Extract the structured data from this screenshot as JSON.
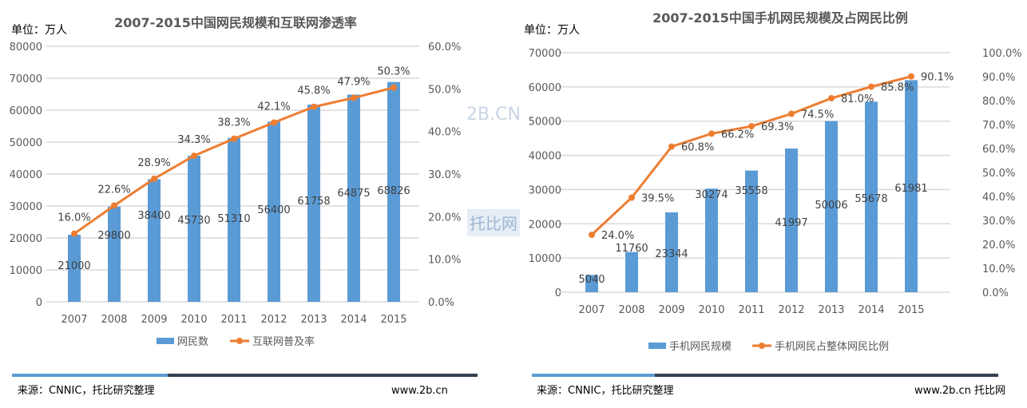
{
  "watermark": {
    "top": "2B.CN",
    "bottom": "托比网"
  },
  "colors": {
    "bar": "#5b9bd5",
    "line": "#ed7d31",
    "grid": "#d9d9d9",
    "footer_blue": "#5b9bd5",
    "footer_dark": "#333f50"
  },
  "chart_data": [
    {
      "type": "bar+line",
      "title": "2007-2015中国网民规模和互联网渗透率",
      "unit_label": "单位：万人",
      "categories": [
        "2007",
        "2008",
        "2009",
        "2010",
        "2011",
        "2012",
        "2013",
        "2014",
        "2015"
      ],
      "ylim": [
        0,
        80000
      ],
      "yticks": [
        "0",
        "10000",
        "20000",
        "30000",
        "40000",
        "50000",
        "60000",
        "70000",
        "80000"
      ],
      "y2lim": [
        0,
        60
      ],
      "y2ticks": [
        "0.0%",
        "10.0%",
        "20.0%",
        "30.0%",
        "40.0%",
        "50.0%",
        "60.0%"
      ],
      "grid": true,
      "legend_position": "bottom",
      "series": [
        {
          "name": "网民数",
          "type": "bar",
          "axis": "left",
          "values": [
            21000,
            29800,
            38400,
            45730,
            51310,
            56400,
            61758,
            64875,
            68826
          ],
          "labels": [
            "21000",
            "29800",
            "38400",
            "45730",
            "51310",
            "56400",
            "61758",
            "64875",
            "68826"
          ]
        },
        {
          "name": "互联网普及率",
          "type": "line",
          "axis": "right",
          "values": [
            16.0,
            22.6,
            28.9,
            34.3,
            38.3,
            42.1,
            45.8,
            47.9,
            50.3
          ],
          "labels": [
            "16.0%",
            "22.6%",
            "28.9%",
            "34.3%",
            "38.3%",
            "42.1%",
            "45.8%",
            "47.9%",
            "50.3%"
          ]
        }
      ],
      "footer": {
        "source": "来源：CNNIC，托比研究整理",
        "site": "www.2b.cn"
      }
    },
    {
      "type": "bar+line",
      "title": "2007-2015中国手机网民规模及占网民比例",
      "unit_label": "单位：万人",
      "categories": [
        "2007",
        "2008",
        "2009",
        "2010",
        "2011",
        "2012",
        "2013",
        "2014",
        "2015"
      ],
      "ylim": [
        0,
        70000
      ],
      "yticks": [
        "0",
        "10000",
        "20000",
        "30000",
        "40000",
        "50000",
        "60000",
        "70000"
      ],
      "y2lim": [
        0,
        100
      ],
      "y2ticks": [
        "0.0%",
        "10.0%",
        "20.0%",
        "30.0%",
        "40.0%",
        "50.0%",
        "60.0%",
        "70.0%",
        "80.0%",
        "90.0%",
        "100.0%"
      ],
      "grid": true,
      "legend_position": "bottom",
      "series": [
        {
          "name": "手机网民规模",
          "type": "bar",
          "axis": "left",
          "values": [
            5040,
            11760,
            23344,
            30274,
            35558,
            41997,
            50006,
            55678,
            61981
          ],
          "labels": [
            "5040",
            "11760",
            "23344",
            "30274",
            "35558",
            "41997",
            "50006",
            "55678",
            "61981"
          ]
        },
        {
          "name": "手机网民占整体网民比例",
          "type": "line",
          "axis": "right",
          "values": [
            24.0,
            39.5,
            60.8,
            66.2,
            69.3,
            74.5,
            81.0,
            85.8,
            90.1
          ],
          "labels": [
            "24.0%",
            "39.5%",
            "60.8%",
            "66.2%",
            "69.3%",
            "74.5%",
            "81.0%",
            "85.8%",
            "90.1%"
          ]
        }
      ],
      "footer": {
        "source": "来源：CNNIC，托比研究整理",
        "site": "www.2b.cn 托比网"
      }
    }
  ]
}
